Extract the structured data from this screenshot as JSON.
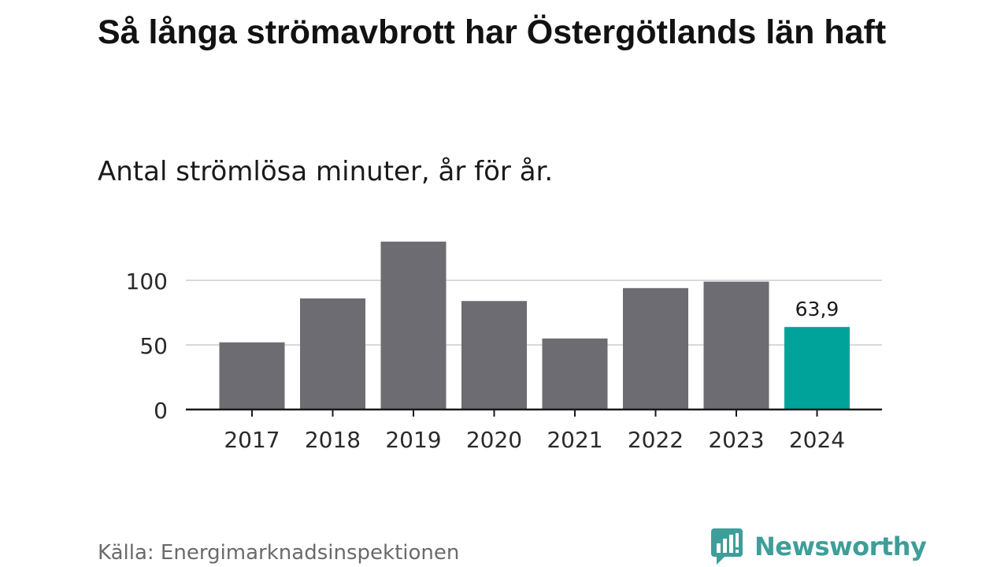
{
  "title": "Så långa strömavbrott har Östergötlands län haft",
  "subtitle": "Antal strömlösa minuter, år för år.",
  "source": "Källa: Energimarknadsinspektionen",
  "brand": {
    "name": "Newsworthy",
    "icon": "newsworthy-logo-icon"
  },
  "colors": {
    "bar": "#6d6c72",
    "highlight": "#00a39a",
    "grid": "#d9d9d9",
    "axis": "#1a1a1a",
    "brand": "#3e9e9a"
  },
  "chart_data": {
    "type": "bar",
    "title": "Så långa strömavbrott har Östergötlands län haft",
    "subtitle": "Antal strömlösa minuter, år för år.",
    "xlabel": "",
    "ylabel": "",
    "categories": [
      "2017",
      "2018",
      "2019",
      "2020",
      "2021",
      "2022",
      "2023",
      "2024"
    ],
    "values": [
      52,
      86,
      130,
      84,
      55,
      94,
      99,
      63.9
    ],
    "highlight_index": 7,
    "data_labels": [
      {
        "index": 7,
        "text": "63,9"
      }
    ],
    "yticks": [
      0,
      50,
      100
    ],
    "ytick_labels": [
      "0",
      "50",
      "100"
    ],
    "ylim": [
      0,
      130
    ],
    "grid": true
  }
}
